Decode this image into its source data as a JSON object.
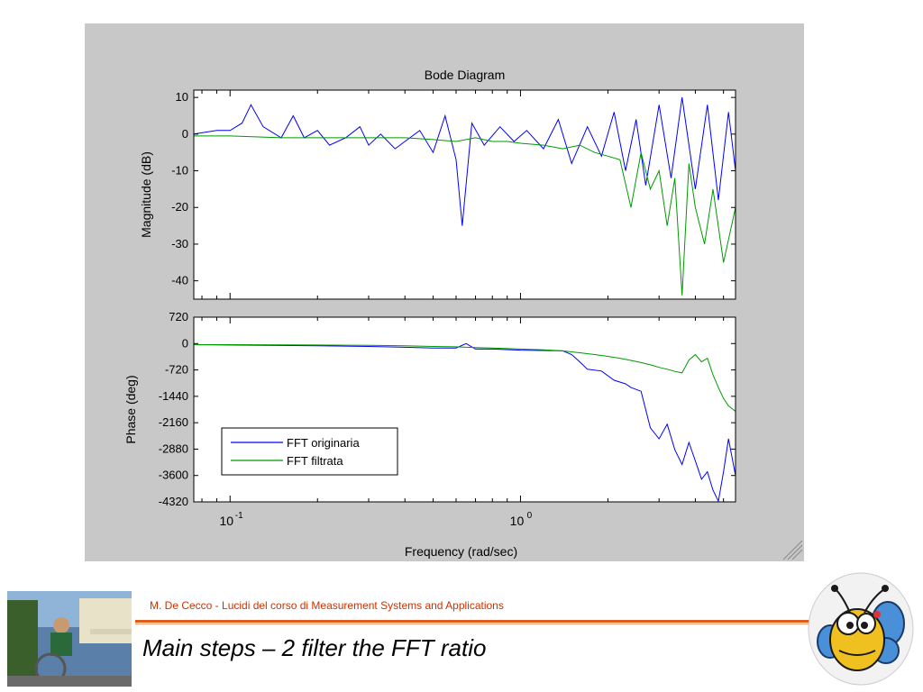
{
  "chart_data": [
    {
      "type": "line",
      "title": "Bode Diagram",
      "xlabel": "",
      "ylabel": "Magnitude (dB)",
      "xscale": "log",
      "xlim": [
        0.075,
        5.5
      ],
      "ylim": [
        -45,
        12
      ],
      "yticks": [
        10,
        0,
        -10,
        -20,
        -30,
        -40
      ],
      "ytick_labels": [
        "10",
        "0",
        "-10",
        "-20",
        "-30",
        "-40"
      ],
      "grid": false,
      "series": [
        {
          "name": "FFT originaria",
          "color": "#0000ff",
          "x": [
            0.075,
            0.09,
            0.1,
            0.11,
            0.118,
            0.13,
            0.15,
            0.165,
            0.18,
            0.2,
            0.22,
            0.25,
            0.28,
            0.3,
            0.33,
            0.37,
            0.4,
            0.45,
            0.5,
            0.55,
            0.6,
            0.63,
            0.68,
            0.75,
            0.85,
            0.95,
            1.05,
            1.2,
            1.35,
            1.5,
            1.7,
            1.9,
            2.1,
            2.3,
            2.5,
            2.7,
            3.0,
            3.3,
            3.6,
            4.0,
            4.4,
            4.8,
            5.2,
            5.5
          ],
          "y": [
            0,
            1,
            1,
            3,
            8,
            2,
            -1,
            5,
            -1,
            1,
            -3,
            -1,
            2,
            -3,
            0,
            -4,
            -2,
            1,
            -5,
            5,
            -7,
            -25,
            3,
            -3,
            2,
            -2,
            1,
            -4,
            4,
            -8,
            2,
            -6,
            6,
            -10,
            4,
            -14,
            8,
            -12,
            10,
            -15,
            8,
            -18,
            6,
            -10
          ]
        },
        {
          "name": "FFT filtrata",
          "color": "#009900",
          "x": [
            0.075,
            0.1,
            0.15,
            0.2,
            0.3,
            0.4,
            0.5,
            0.6,
            0.7,
            0.8,
            0.9,
            1.0,
            1.2,
            1.4,
            1.6,
            1.8,
            2.0,
            2.2,
            2.4,
            2.6,
            2.8,
            3.0,
            3.2,
            3.4,
            3.6,
            3.8,
            4.0,
            4.3,
            4.6,
            5.0,
            5.5
          ],
          "y": [
            -0.5,
            -0.5,
            -1,
            -1,
            -1,
            -1,
            -1.5,
            -2,
            -1,
            -2,
            -2,
            -2.5,
            -3,
            -4,
            -3,
            -5,
            -6,
            -7,
            -20,
            -5,
            -15,
            -10,
            -25,
            -12,
            -44,
            -8,
            -20,
            -30,
            -15,
            -35,
            -20
          ]
        }
      ]
    },
    {
      "type": "line",
      "title": "",
      "xlabel": "Frequency  (rad/sec)",
      "ylabel": "Phase (deg)",
      "xscale": "log",
      "xlim": [
        0.075,
        5.5
      ],
      "xticks": [
        0.1,
        1
      ],
      "xtick_bases": [
        "10",
        "10"
      ],
      "xtick_exps": [
        "-1",
        "0"
      ],
      "ylim": [
        -4320,
        720
      ],
      "yticks": [
        720,
        0,
        -720,
        -1440,
        -2160,
        -2880,
        -3600,
        -4320
      ],
      "ytick_labels": [
        "720",
        "0",
        "-720",
        "-1440",
        "-2160",
        "-2880",
        "-3600",
        "-4320"
      ],
      "grid": false,
      "legend": {
        "position": "bottom-left",
        "entries": [
          "FFT originaria",
          "FFT filtrata"
        ]
      },
      "series": [
        {
          "name": "FFT originaria",
          "color": "#0000ff",
          "x": [
            0.075,
            0.1,
            0.2,
            0.3,
            0.4,
            0.5,
            0.6,
            0.65,
            0.7,
            0.8,
            1.0,
            1.2,
            1.4,
            1.5,
            1.6,
            1.7,
            1.9,
            2.1,
            2.3,
            2.4,
            2.6,
            2.8,
            3.0,
            3.2,
            3.4,
            3.6,
            3.8,
            4.0,
            4.2,
            4.4,
            4.6,
            4.8,
            5.0,
            5.2,
            5.5
          ],
          "y": [
            -30,
            -40,
            -60,
            -80,
            -100,
            -120,
            -120,
            0,
            -150,
            -150,
            -180,
            -190,
            -200,
            -300,
            -500,
            -700,
            -750,
            -1000,
            -1100,
            -1200,
            -1300,
            -2300,
            -2600,
            -2200,
            -2900,
            -3300,
            -2700,
            -3200,
            -3700,
            -3500,
            -4000,
            -4300,
            -3500,
            -2600,
            -3600
          ]
        },
        {
          "name": "FFT filtrata",
          "color": "#009900",
          "x": [
            0.075,
            0.1,
            0.2,
            0.3,
            0.4,
            0.5,
            0.6,
            0.7,
            0.8,
            1.0,
            1.2,
            1.4,
            1.6,
            1.8,
            2.0,
            2.2,
            2.4,
            2.6,
            2.8,
            3.0,
            3.2,
            3.4,
            3.6,
            3.8,
            4.0,
            4.2,
            4.4,
            4.6,
            4.8,
            5.0,
            5.2,
            5.5
          ],
          "y": [
            -30,
            -30,
            -40,
            -50,
            -60,
            -80,
            -90,
            -110,
            -120,
            -150,
            -170,
            -200,
            -250,
            -300,
            -350,
            -400,
            -460,
            -520,
            -580,
            -650,
            -700,
            -760,
            -800,
            -450,
            -300,
            -500,
            -400,
            -850,
            -1200,
            -1500,
            -1700,
            -1850
          ]
        }
      ]
    }
  ],
  "footer": {
    "credit": "M. De Cecco - Lucidi del corso di Measurement Systems and Applications",
    "title": "Main steps – 2 filter the FFT ratio"
  },
  "colors": {
    "accent": "#e05a1a",
    "credit": "#cc3300"
  }
}
